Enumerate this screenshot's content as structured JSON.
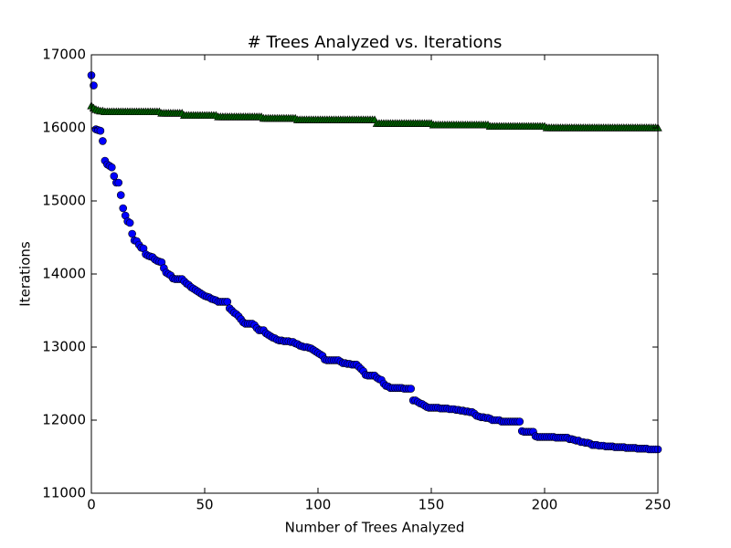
{
  "chart_data": {
    "type": "scatter",
    "title": "# Trees Analyzed vs. Iterations",
    "xlabel": "Number of Trees Analyzed",
    "ylabel": "Iterations",
    "xlim": [
      0,
      250
    ],
    "ylim": [
      11000,
      17000
    ],
    "xticks": [
      0,
      50,
      100,
      150,
      200,
      250
    ],
    "yticks": [
      11000,
      12000,
      13000,
      14000,
      15000,
      16000,
      17000
    ],
    "grid": false,
    "x": [
      0,
      1,
      2,
      3,
      4,
      5,
      6,
      7,
      8,
      9,
      10,
      11,
      12,
      13,
      14,
      15,
      16,
      17,
      18,
      19,
      20,
      21,
      22,
      23,
      24,
      25,
      26,
      27,
      28,
      29,
      30,
      31,
      32,
      33,
      34,
      35,
      36,
      37,
      38,
      39,
      40,
      41,
      42,
      43,
      44,
      45,
      46,
      47,
      48,
      49,
      50,
      51,
      52,
      53,
      54,
      55,
      56,
      57,
      58,
      59,
      60,
      61,
      62,
      63,
      64,
      65,
      66,
      67,
      68,
      69,
      70,
      71,
      72,
      73,
      74,
      75,
      76,
      77,
      78,
      79,
      80,
      81,
      82,
      83,
      84,
      85,
      86,
      87,
      88,
      89,
      90,
      91,
      92,
      93,
      94,
      95,
      96,
      97,
      98,
      99,
      100,
      101,
      102,
      103,
      104,
      105,
      106,
      107,
      108,
      109,
      110,
      111,
      112,
      113,
      114,
      115,
      116,
      117,
      118,
      119,
      120,
      121,
      122,
      123,
      124,
      125,
      126,
      127,
      128,
      129,
      130,
      131,
      132,
      133,
      134,
      135,
      136,
      137,
      138,
      139,
      140,
      141,
      142,
      143,
      144,
      145,
      146,
      147,
      148,
      149,
      150,
      151,
      152,
      153,
      154,
      155,
      156,
      157,
      158,
      159,
      160,
      161,
      162,
      163,
      164,
      165,
      166,
      167,
      168,
      169,
      170,
      171,
      172,
      173,
      174,
      175,
      176,
      177,
      178,
      179,
      180,
      181,
      182,
      183,
      184,
      185,
      186,
      187,
      188,
      189,
      190,
      191,
      192,
      193,
      194,
      195,
      196,
      197,
      198,
      199,
      200,
      201,
      202,
      203,
      204,
      205,
      206,
      207,
      208,
      209,
      210,
      211,
      212,
      213,
      214,
      215,
      216,
      217,
      218,
      219,
      220,
      221,
      222,
      223,
      224,
      225,
      226,
      227,
      228,
      229,
      230,
      231,
      232,
      233,
      234,
      235,
      236,
      237,
      238,
      239,
      240,
      241,
      242,
      243,
      244,
      245,
      246,
      247,
      248,
      249,
      250
    ],
    "series": [
      {
        "color": "#006400",
        "marker": "^",
        "values": [
          16300,
          16270,
          16250,
          16240,
          16230,
          16230,
          16220,
          16220,
          16220,
          16220,
          16220,
          16220,
          16220,
          16220,
          16220,
          16220,
          16220,
          16220,
          16220,
          16220,
          16220,
          16220,
          16220,
          16220,
          16220,
          16220,
          16220,
          16220,
          16220,
          16220,
          16220,
          16200,
          16200,
          16200,
          16200,
          16200,
          16200,
          16200,
          16200,
          16200,
          16200,
          16170,
          16170,
          16170,
          16170,
          16170,
          16170,
          16170,
          16170,
          16170,
          16170,
          16170,
          16170,
          16170,
          16170,
          16170,
          16150,
          16150,
          16150,
          16150,
          16150,
          16150,
          16150,
          16150,
          16150,
          16150,
          16150,
          16150,
          16150,
          16150,
          16150,
          16150,
          16150,
          16150,
          16150,
          16150,
          16130,
          16130,
          16130,
          16130,
          16130,
          16130,
          16130,
          16130,
          16130,
          16130,
          16130,
          16130,
          16130,
          16130,
          16130,
          16110,
          16110,
          16110,
          16110,
          16110,
          16110,
          16110,
          16110,
          16110,
          16110,
          16110,
          16110,
          16110,
          16110,
          16110,
          16110,
          16110,
          16110,
          16110,
          16110,
          16110,
          16110,
          16110,
          16110,
          16110,
          16110,
          16110,
          16110,
          16110,
          16110,
          16110,
          16110,
          16110,
          16110,
          16110,
          16060,
          16060,
          16060,
          16060,
          16060,
          16060,
          16060,
          16060,
          16060,
          16060,
          16060,
          16060,
          16060,
          16060,
          16060,
          16060,
          16060,
          16060,
          16060,
          16060,
          16060,
          16060,
          16060,
          16060,
          16060,
          16040,
          16040,
          16040,
          16040,
          16040,
          16040,
          16040,
          16040,
          16040,
          16040,
          16040,
          16040,
          16040,
          16040,
          16040,
          16040,
          16040,
          16040,
          16040,
          16040,
          16040,
          16040,
          16040,
          16040,
          16040,
          16020,
          16020,
          16020,
          16020,
          16020,
          16020,
          16020,
          16020,
          16020,
          16020,
          16020,
          16020,
          16020,
          16020,
          16020,
          16020,
          16020,
          16020,
          16020,
          16020,
          16020,
          16020,
          16020,
          16020,
          16020,
          16000,
          16000,
          16000,
          16000,
          16000,
          16000,
          16000,
          16000,
          16000,
          16000,
          16000,
          16000,
          16000,
          16000,
          16000,
          16000,
          16000,
          16000,
          16000,
          16000,
          16000,
          16000,
          16000,
          16000,
          16000,
          16000,
          16000,
          16000,
          16000,
          16000,
          16000,
          16000,
          16000,
          16000,
          16000,
          16000,
          16000,
          16000,
          16000,
          16000,
          16000,
          16000,
          16000,
          16000,
          16000,
          16000,
          16000,
          16000,
          16000,
          16000
        ]
      },
      {
        "color": "#0000ff",
        "marker": "o",
        "values": [
          16720,
          16580,
          15980,
          15970,
          15960,
          15820,
          15550,
          15500,
          15480,
          15460,
          15340,
          15250,
          15250,
          15080,
          14900,
          14800,
          14720,
          14700,
          14550,
          14460,
          14450,
          14400,
          14360,
          14350,
          14270,
          14250,
          14240,
          14230,
          14200,
          14180,
          14170,
          14160,
          14080,
          14020,
          14000,
          13980,
          13940,
          13930,
          13930,
          13930,
          13930,
          13900,
          13870,
          13850,
          13820,
          13800,
          13780,
          13760,
          13740,
          13720,
          13700,
          13690,
          13680,
          13660,
          13650,
          13640,
          13620,
          13620,
          13620,
          13620,
          13620,
          13530,
          13500,
          13470,
          13450,
          13420,
          13380,
          13340,
          13320,
          13320,
          13320,
          13320,
          13300,
          13260,
          13230,
          13230,
          13230,
          13190,
          13170,
          13150,
          13130,
          13120,
          13100,
          13090,
          13090,
          13080,
          13080,
          13080,
          13070,
          13070,
          13050,
          13040,
          13020,
          13010,
          13000,
          13000,
          12990,
          12980,
          12960,
          12940,
          12920,
          12900,
          12880,
          12830,
          12820,
          12820,
          12820,
          12820,
          12820,
          12820,
          12800,
          12780,
          12780,
          12770,
          12770,
          12760,
          12760,
          12760,
          12730,
          12700,
          12670,
          12620,
          12610,
          12610,
          12610,
          12610,
          12580,
          12560,
          12550,
          12500,
          12470,
          12460,
          12440,
          12440,
          12440,
          12440,
          12440,
          12440,
          12430,
          12430,
          12430,
          12430,
          12270,
          12270,
          12250,
          12230,
          12220,
          12200,
          12180,
          12170,
          12170,
          12170,
          12170,
          12170,
          12160,
          12160,
          12160,
          12160,
          12150,
          12150,
          12150,
          12140,
          12140,
          12130,
          12130,
          12120,
          12120,
          12110,
          12110,
          12090,
          12060,
          12050,
          12040,
          12040,
          12030,
          12030,
          12020,
          12000,
          12000,
          12000,
          12000,
          11980,
          11980,
          11980,
          11980,
          11980,
          11980,
          11980,
          11980,
          11980,
          11850,
          11840,
          11840,
          11840,
          11840,
          11840,
          11780,
          11770,
          11770,
          11770,
          11770,
          11770,
          11770,
          11770,
          11770,
          11760,
          11760,
          11760,
          11760,
          11760,
          11760,
          11740,
          11740,
          11730,
          11720,
          11720,
          11700,
          11700,
          11690,
          11690,
          11680,
          11660,
          11660,
          11660,
          11650,
          11650,
          11650,
          11640,
          11640,
          11640,
          11640,
          11630,
          11630,
          11630,
          11630,
          11630,
          11620,
          11620,
          11620,
          11620,
          11620,
          11610,
          11610,
          11610,
          11610,
          11610,
          11600,
          11600,
          11600,
          11600,
          11600
        ]
      }
    ]
  }
}
